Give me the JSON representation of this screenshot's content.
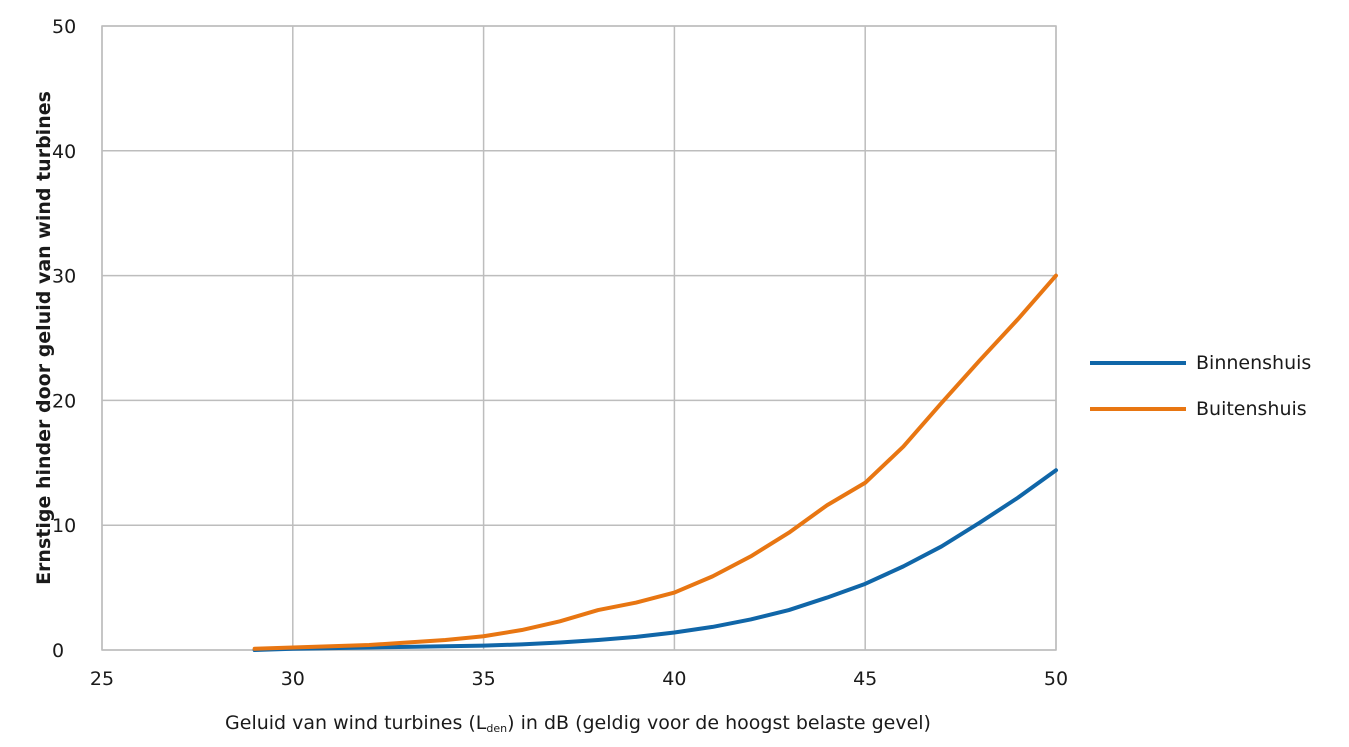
{
  "chart_data": {
    "type": "line",
    "title": "",
    "xlabel_prefix": "Geluid van wind turbines (L",
    "xlabel_sub": "den",
    "xlabel_suffix": ") in dB (geldig voor de hoogst belaste gevel)",
    "ylabel": "Ernstige hinder door geluid van wind turbines",
    "xlim": [
      25,
      50
    ],
    "ylim": [
      0,
      50
    ],
    "xticks": [
      "25",
      "30",
      "35",
      "40",
      "45",
      "50"
    ],
    "yticks": [
      "0",
      "10",
      "20",
      "30",
      "40",
      "50"
    ],
    "grid": true,
    "legend_position": "right",
    "x": [
      29,
      30,
      31,
      32,
      33,
      34,
      35,
      36,
      37,
      38,
      39,
      40,
      41,
      42,
      43,
      44,
      45,
      46,
      47,
      48,
      49,
      50
    ],
    "series": [
      {
        "name": "Binnenshuis",
        "color": "#1066a8",
        "values": [
          0.0,
          0.1,
          0.15,
          0.2,
          0.25,
          0.3,
          0.35,
          0.45,
          0.6,
          0.8,
          1.05,
          1.4,
          1.85,
          2.45,
          3.2,
          4.2,
          5.3,
          6.7,
          8.3,
          10.2,
          12.2,
          14.4
        ]
      },
      {
        "name": "Buitenshuis",
        "color": "#e87612",
        "values": [
          0.1,
          0.2,
          0.3,
          0.4,
          0.6,
          0.8,
          1.1,
          1.6,
          2.3,
          3.2,
          3.8,
          4.6,
          5.9,
          7.5,
          9.4,
          11.6,
          13.4,
          16.3,
          19.8,
          23.2,
          26.5,
          30.0
        ]
      }
    ]
  }
}
